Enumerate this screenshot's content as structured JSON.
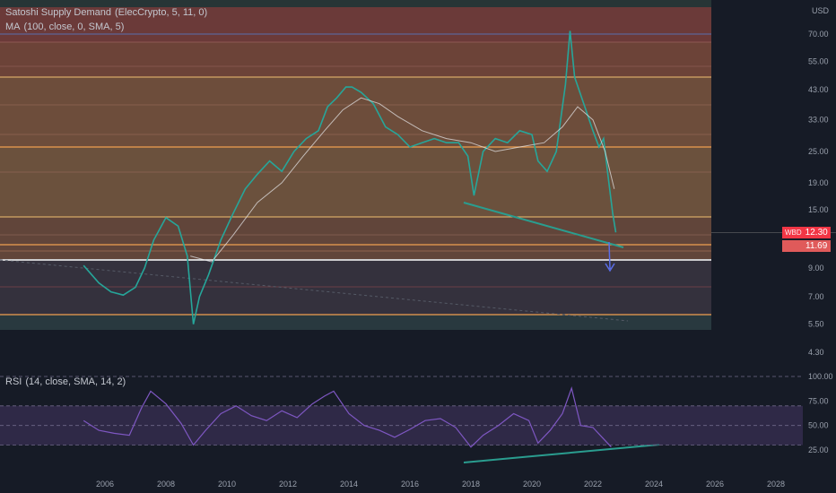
{
  "indicators": {
    "main_name": "Satoshi Supply Demand",
    "main_params": "(ElecCrypto, 5, 11, 0)",
    "ma_name": "MA",
    "ma_params": "(100, close, 0, SMA, 5)",
    "rsi_name": "RSI",
    "rsi_params": "(14, close, SMA, 14, 2)"
  },
  "price_axis": {
    "currency": "USD",
    "ticks": [
      "70.00",
      "55.00",
      "43.00",
      "33.00",
      "25.00",
      "19.00",
      "15.00",
      "9.00",
      "7.00",
      "5.50",
      "4.30"
    ],
    "last_symbol": "WBD",
    "last_price": "12.30",
    "secondary_price": "11.69",
    "last_color": "#f23645",
    "secondary_color": "#e05a5a"
  },
  "rsi_axis": {
    "ticks": [
      "100.00",
      "75.00",
      "50.00",
      "25.00"
    ]
  },
  "time_axis": {
    "labels": [
      "2006",
      "2008",
      "2010",
      "2012",
      "2014",
      "2016",
      "2018",
      "2020",
      "2022",
      "2024",
      "2026",
      "2028"
    ]
  },
  "chart_data": [
    {
      "type": "line",
      "name": "price",
      "x": [
        2005.3,
        2005.8,
        2006.2,
        2006.6,
        2007.0,
        2007.3,
        2007.6,
        2008.0,
        2008.4,
        2008.7,
        2008.9,
        2009.1,
        2009.4,
        2009.8,
        2010.2,
        2010.6,
        2011.0,
        2011.4,
        2011.8,
        2012.2,
        2012.6,
        2013.0,
        2013.3,
        2013.6,
        2013.9,
        2014.1,
        2014.4,
        2014.8,
        2015.2,
        2015.6,
        2016.0,
        2016.4,
        2016.8,
        2017.2,
        2017.6,
        2017.9,
        2018.1,
        2018.4,
        2018.8,
        2019.2,
        2019.6,
        2020.0,
        2020.2,
        2020.5,
        2020.8,
        2021.1,
        2021.25,
        2021.4,
        2021.7,
        2022.0,
        2022.2,
        2022.35,
        2022.5,
        2022.65,
        2022.75
      ],
      "values": [
        9.2,
        7.9,
        7.3,
        7.1,
        7.6,
        9.0,
        11.5,
        14.0,
        13.0,
        10.0,
        5.5,
        7.0,
        8.5,
        11.5,
        14.5,
        18.0,
        20.5,
        23.0,
        21.0,
        25.0,
        28.0,
        30.0,
        37.0,
        40.0,
        44.0,
        44.0,
        42.0,
        38.0,
        31.0,
        29.0,
        26.0,
        27.0,
        28.0,
        27.0,
        27.0,
        24.0,
        17.0,
        25.0,
        28.0,
        27.0,
        30.0,
        29.0,
        23.0,
        21.0,
        25.0,
        45.0,
        72.0,
        48.0,
        38.0,
        30.0,
        26.0,
        28.0,
        20.0,
        14.5,
        12.3
      ],
      "ylim": [
        4.3,
        100
      ],
      "scale": "log",
      "color": "#26a69a"
    },
    {
      "type": "line",
      "name": "MA",
      "x": [
        2008.8,
        2009.5,
        2010.2,
        2011.0,
        2011.8,
        2012.5,
        2013.2,
        2013.8,
        2014.4,
        2015.0,
        2015.6,
        2016.4,
        2017.2,
        2018.0,
        2018.8,
        2019.6,
        2020.4,
        2021.0,
        2021.5,
        2022.0,
        2022.4,
        2022.7
      ],
      "values": [
        10.0,
        9.5,
        12.0,
        16.0,
        19.0,
        24.0,
        30.0,
        36.0,
        40.0,
        38.0,
        34.0,
        30.0,
        28.0,
        27.0,
        25.0,
        26.0,
        27.0,
        31.0,
        37.0,
        33.0,
        25.0,
        18.0
      ],
      "color": "#e8eaed"
    },
    {
      "type": "line",
      "name": "RSI",
      "x": [
        2005.3,
        2005.8,
        2006.3,
        2006.8,
        2007.2,
        2007.5,
        2008.0,
        2008.5,
        2008.9,
        2009.3,
        2009.8,
        2010.3,
        2010.8,
        2011.3,
        2011.8,
        2012.3,
        2012.8,
        2013.2,
        2013.5,
        2014.0,
        2014.5,
        2015.0,
        2015.5,
        2016.0,
        2016.5,
        2017.0,
        2017.5,
        2018.0,
        2018.4,
        2018.9,
        2019.4,
        2019.9,
        2020.2,
        2020.6,
        2021.0,
        2021.3,
        2021.6,
        2022.0,
        2022.3,
        2022.6
      ],
      "values": [
        55,
        45,
        42,
        40,
        68,
        85,
        72,
        52,
        30,
        45,
        62,
        70,
        60,
        55,
        65,
        58,
        72,
        80,
        85,
        62,
        50,
        45,
        38,
        46,
        55,
        57,
        48,
        28,
        40,
        50,
        62,
        55,
        32,
        45,
        62,
        88,
        50,
        48,
        38,
        28
      ],
      "ylim": [
        0,
        100
      ],
      "color": "#7e57c2"
    }
  ]
}
